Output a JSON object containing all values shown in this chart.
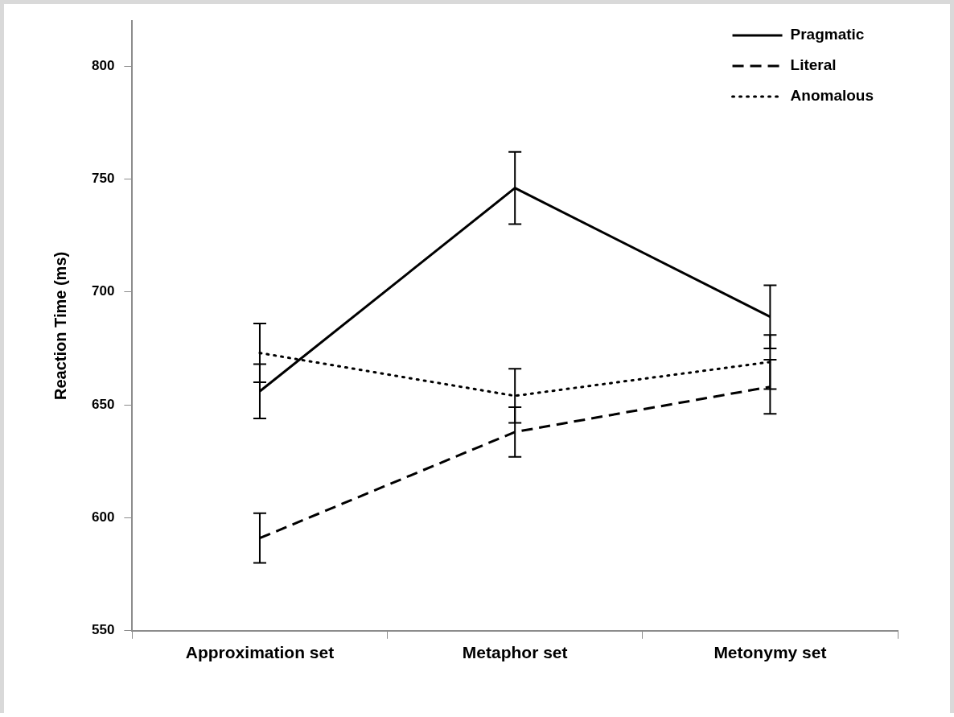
{
  "chart_data": {
    "type": "line",
    "ylabel": "Reaction Time (ms)",
    "categories": [
      "Approximation set",
      "Metaphor set",
      "Metonymy set"
    ],
    "series": [
      {
        "name": "Pragmatic",
        "color": "#000000",
        "line_style": "solid",
        "values": [
          656,
          746,
          689
        ],
        "errors": [
          12,
          16,
          14
        ]
      },
      {
        "name": "Literal",
        "color": "#000000",
        "line_style": "dashed",
        "values": [
          591,
          638,
          658
        ],
        "errors": [
          11,
          11,
          12
        ]
      },
      {
        "name": "Anomalous",
        "color": "#000000",
        "line_style": "dotted",
        "values": [
          673,
          654,
          669
        ],
        "errors": [
          13,
          12,
          12
        ]
      }
    ],
    "ylim": [
      550,
      820
    ],
    "yticks": [
      550,
      600,
      650,
      700,
      750,
      800
    ],
    "grid": false,
    "legend": "top right",
    "marker": "none"
  }
}
